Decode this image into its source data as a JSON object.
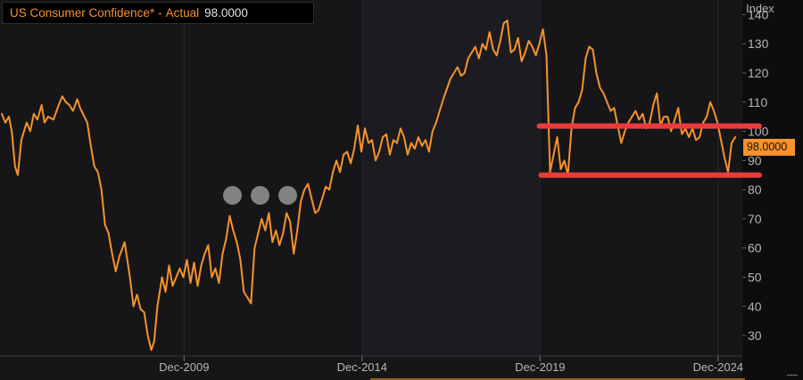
{
  "legend": {
    "name": "US Consumer Confidence*",
    "separator": "-",
    "type": "Actual",
    "value": "98.0000"
  },
  "last_value_label": "98.0000",
  "colors": {
    "background": "#0d0d0f",
    "line": "#f7922c",
    "highlight": "#ea3b3b",
    "grid": "#2a2a2e",
    "axis_text": "#b5b5b5"
  },
  "chart_data": {
    "type": "line",
    "title": "US Consumer Confidence* - Actual 98.0000",
    "ylabel": "Index",
    "ylim": [
      23,
      145
    ],
    "yticks": [
      30,
      40,
      50,
      60,
      70,
      80,
      90,
      100,
      110,
      120,
      130,
      140
    ],
    "xlim": [
      2004.75,
      2025.6
    ],
    "xticks": [
      {
        "x": 2009.92,
        "label": "Dec-2009"
      },
      {
        "x": 2014.92,
        "label": "Dec-2014"
      },
      {
        "x": 2019.92,
        "label": "Dec-2019"
      },
      {
        "x": 2024.92,
        "label": "Dec-2024"
      }
    ],
    "grid": true,
    "series": [
      {
        "name": "US Consumer Confidence",
        "x": [
          2004.8,
          2004.9,
          2005.0,
          2005.08,
          2005.17,
          2005.25,
          2005.35,
          2005.5,
          2005.6,
          2005.7,
          2005.8,
          2005.92,
          2006.0,
          2006.1,
          2006.25,
          2006.4,
          2006.5,
          2006.6,
          2006.7,
          2006.8,
          2006.92,
          2007.0,
          2007.08,
          2007.2,
          2007.3,
          2007.4,
          2007.5,
          2007.6,
          2007.7,
          2007.8,
          2007.9,
          2008.0,
          2008.1,
          2008.25,
          2008.4,
          2008.5,
          2008.6,
          2008.7,
          2008.8,
          2008.9,
          2009.0,
          2009.08,
          2009.17,
          2009.3,
          2009.4,
          2009.5,
          2009.6,
          2009.7,
          2009.8,
          2009.9,
          2010.0,
          2010.1,
          2010.2,
          2010.3,
          2010.4,
          2010.5,
          2010.6,
          2010.7,
          2010.8,
          2010.9,
          2011.0,
          2011.1,
          2011.2,
          2011.3,
          2011.4,
          2011.5,
          2011.6,
          2011.7,
          2011.8,
          2011.9,
          2012.0,
          2012.1,
          2012.2,
          2012.3,
          2012.4,
          2012.5,
          2012.6,
          2012.7,
          2012.8,
          2012.9,
          2013.0,
          2013.1,
          2013.2,
          2013.3,
          2013.4,
          2013.5,
          2013.6,
          2013.7,
          2013.8,
          2013.9,
          2014.0,
          2014.1,
          2014.2,
          2014.3,
          2014.4,
          2014.5,
          2014.6,
          2014.7,
          2014.8,
          2014.9,
          2015.0,
          2015.1,
          2015.2,
          2015.3,
          2015.4,
          2015.5,
          2015.6,
          2015.7,
          2015.8,
          2015.9,
          2016.0,
          2016.1,
          2016.2,
          2016.3,
          2016.4,
          2016.5,
          2016.6,
          2016.7,
          2016.8,
          2016.9,
          2017.0,
          2017.2,
          2017.4,
          2017.6,
          2017.7,
          2017.8,
          2017.9,
          2018.0,
          2018.1,
          2018.2,
          2018.3,
          2018.4,
          2018.5,
          2018.6,
          2018.7,
          2018.8,
          2018.9,
          2019.0,
          2019.1,
          2019.2,
          2019.3,
          2019.4,
          2019.5,
          2019.6,
          2019.7,
          2019.8,
          2019.9,
          2020.0,
          2020.1,
          2020.2,
          2020.3,
          2020.4,
          2020.5,
          2020.6,
          2020.7,
          2020.8,
          2020.9,
          2021.0,
          2021.1,
          2021.2,
          2021.3,
          2021.4,
          2021.5,
          2021.6,
          2021.7,
          2021.8,
          2021.9,
          2022.0,
          2022.1,
          2022.2,
          2022.3,
          2022.4,
          2022.5,
          2022.6,
          2022.7,
          2022.8,
          2022.9,
          2023.0,
          2023.1,
          2023.2,
          2023.3,
          2023.4,
          2023.5,
          2023.6,
          2023.7,
          2023.8,
          2023.9,
          2024.0,
          2024.1,
          2024.2,
          2024.3,
          2024.4,
          2024.5,
          2024.6,
          2024.7,
          2024.8,
          2024.9,
          2025.0,
          2025.1,
          2025.2,
          2025.3,
          2025.4
        ],
        "values": [
          106,
          103,
          105,
          100,
          88,
          85,
          97,
          103,
          100,
          106,
          104,
          109,
          103,
          105,
          104,
          109,
          112,
          110,
          109,
          107,
          111,
          108,
          106,
          103,
          95,
          88,
          86,
          80,
          68,
          65,
          58,
          52,
          57,
          62,
          50,
          40,
          44,
          39,
          38,
          30,
          25,
          28,
          40,
          50,
          45,
          54,
          47,
          50,
          53,
          50,
          56,
          48,
          55,
          47,
          54,
          58,
          61,
          50,
          53,
          48,
          58,
          63,
          71,
          66,
          62,
          56,
          45,
          43,
          41,
          60,
          65,
          70,
          66,
          72,
          62,
          66,
          61,
          65,
          72,
          69,
          58,
          66,
          76,
          80,
          82,
          77,
          72,
          73,
          77,
          81,
          80,
          86,
          90,
          86,
          92,
          93,
          89,
          94,
          102,
          93,
          101,
          96,
          97,
          90,
          93,
          98,
          99,
          92,
          97,
          96,
          101,
          98,
          92,
          96,
          94,
          98,
          95,
          97,
          93,
          100,
          103,
          111,
          118,
          122,
          119,
          120,
          125,
          127,
          129,
          125,
          130,
          128,
          134,
          128,
          126,
          131,
          137,
          138,
          127,
          128,
          132,
          124,
          127,
          131,
          129,
          126,
          130,
          135,
          126,
          86,
          92,
          98,
          87,
          90,
          85,
          101,
          108,
          110,
          114,
          125,
          129,
          128,
          120,
          115,
          113,
          110,
          107,
          108,
          102,
          96,
          100,
          103,
          105,
          107,
          104,
          106,
          101,
          103,
          109,
          113,
          102,
          105,
          105,
          100,
          104,
          108,
          99,
          101,
          98,
          101,
          97,
          98,
          103,
          105,
          110,
          107,
          103,
          97,
          91,
          86,
          96,
          98
        ]
      }
    ],
    "annotations": [
      {
        "type": "horizontal_line",
        "y": 101.8,
        "x_start": 2019.9
      },
      {
        "type": "horizontal_line",
        "y": 85,
        "x_start": 2019.95
      }
    ],
    "last_value": 98.0,
    "legend_placement": "top-left"
  }
}
